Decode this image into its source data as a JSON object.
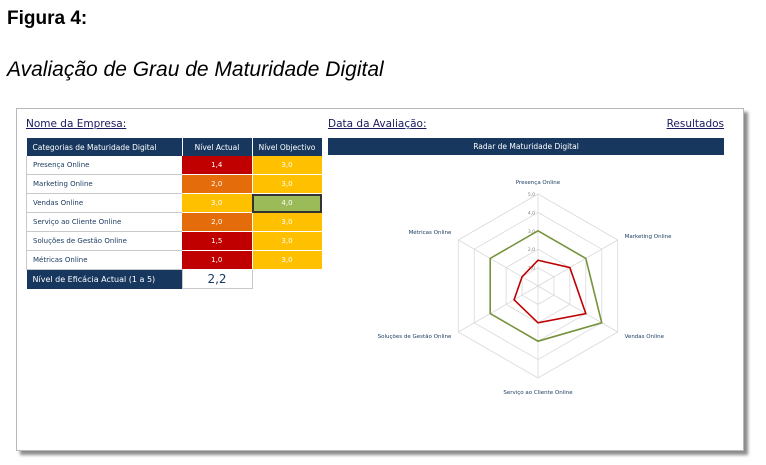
{
  "figure": {
    "label": "Figura 4:",
    "caption": "Avaliação de Grau de Maturidade Digital"
  },
  "header": {
    "company": "Nome da Empresa:",
    "date": "Data da Avaliação:",
    "results": "Resultados"
  },
  "table": {
    "columns": [
      "Categorias de Maturidade Digital",
      "Nível Actual",
      "Nível Objectivo"
    ],
    "rows": [
      {
        "category": "Presença Online",
        "actual": "1,4",
        "target": "3,0",
        "actual_color": "#c00000",
        "target_color": "#ffc000"
      },
      {
        "category": "Marketing Online",
        "actual": "2,0",
        "target": "3,0",
        "actual_color": "#e46c0a",
        "target_color": "#ffc000"
      },
      {
        "category": "Vendas Online",
        "actual": "3,0",
        "target": "4,0",
        "actual_color": "#ffc000",
        "target_color": "#9bbb59"
      },
      {
        "category": "Serviço ao Cliente Online",
        "actual": "2,0",
        "target": "3,0",
        "actual_color": "#e46c0a",
        "target_color": "#ffc000"
      },
      {
        "category": "Soluções de Gestão Online",
        "actual": "1,5",
        "target": "3,0",
        "actual_color": "#c00000",
        "target_color": "#ffc000"
      },
      {
        "category": "Métricas Online",
        "actual": "1,0",
        "target": "3,0",
        "actual_color": "#c00000",
        "target_color": "#ffc000"
      }
    ],
    "footer_label": "Nível de Eficácia Actual (1 a 5)",
    "footer_value": "2,2"
  },
  "chart_data": {
    "type": "radar",
    "title": "Radar de Maturidade Digital",
    "categories": [
      "Presença Online",
      "Marketing Online",
      "Vendas Online",
      "Serviço ao Cliente Online",
      "Soluções de Gestão Online",
      "Métricas Online"
    ],
    "series": [
      {
        "values": [
          1.4,
          2.0,
          3.0,
          2.0,
          1.5,
          1.0
        ],
        "color": "#c00000"
      },
      {
        "values": [
          3.0,
          3.0,
          4.0,
          3.0,
          3.0,
          3.0
        ],
        "color": "#77933c"
      }
    ],
    "rmax": 5,
    "tick_labels": [
      "1,0",
      "2,0",
      "3,0",
      "4,0",
      "5,0"
    ],
    "grid": true
  }
}
